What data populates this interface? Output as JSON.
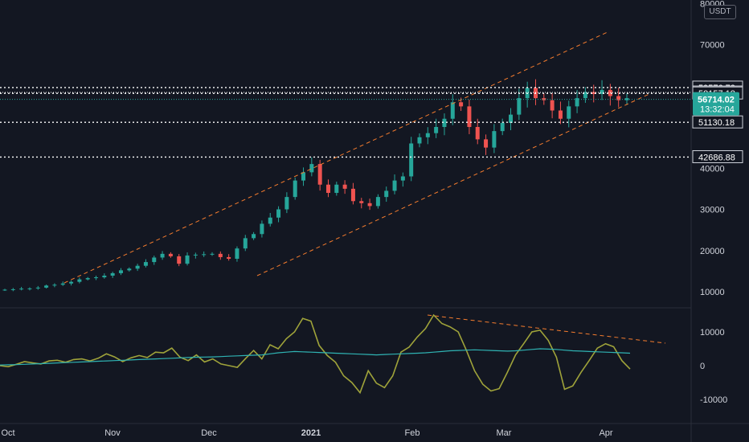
{
  "chart_data": [
    {
      "type": "candlestick",
      "currency": "USDT",
      "x_labels": [
        "Oct",
        "Nov",
        "Dec",
        "2021",
        "Feb",
        "Mar",
        "Apr"
      ],
      "y_ticks": [
        "80000",
        "70000",
        "40000",
        "30000",
        "20000",
        "10000"
      ],
      "ylim": [
        6000,
        80000
      ],
      "price_lines": [
        {
          "label": "59576.72",
          "value": 59576.72
        },
        {
          "label": "58385.81",
          "value": 58385.81
        },
        {
          "label": "58157.18",
          "value": 58157.18
        },
        {
          "label": "51130.18",
          "value": 51130.18
        },
        {
          "label": "42686.88",
          "value": 42686.88
        }
      ],
      "current_price": {
        "label": "56714.02",
        "countdown": "13:32:04",
        "value": 56714.02
      },
      "close_series": [
        10500,
        10600,
        10750,
        10800,
        11000,
        11500,
        11700,
        12000,
        12400,
        13000,
        13300,
        13500,
        13900,
        14500,
        15200,
        15600,
        16300,
        17200,
        18300,
        19200,
        18600,
        16800,
        18800,
        19000,
        19100,
        19200,
        18400,
        18000,
        20500,
        23000,
        24000,
        26500,
        28000,
        30000,
        33000,
        37000,
        39000,
        41000,
        36000,
        34000,
        36000,
        35000,
        32000,
        31500,
        30800,
        33000,
        34500,
        37000,
        38000,
        46000,
        47500,
        48500,
        50000,
        52000,
        56000,
        55000,
        50000,
        47000,
        45000,
        49000,
        51000,
        53000,
        57000,
        59500,
        57000,
        56500,
        54000,
        52000,
        55000,
        57000,
        58500,
        58000,
        59000,
        57500,
        56500,
        57000
      ]
    },
    {
      "type": "line",
      "yticks": [
        "10000",
        "0",
        "-10000"
      ],
      "ylim": [
        -15000,
        17000
      ],
      "series": [
        {
          "color": "#9fa33a",
          "values": [
            0,
            -300,
            400,
            1200,
            800,
            500,
            1400,
            1600,
            1000,
            1800,
            2000,
            1400,
            2200,
            3500,
            2600,
            1200,
            2300,
            3000,
            2400,
            4000,
            3800,
            5200,
            2500,
            1500,
            3200,
            1100,
            2000,
            500,
            0,
            -500,
            2100,
            4500,
            2000,
            6200,
            5000,
            8000,
            10000,
            14000,
            13200,
            6000,
            3000,
            1000,
            -3000,
            -5000,
            -8000,
            -1500,
            -5200,
            -6500,
            -3000,
            4000,
            5500,
            8500,
            11000,
            15000,
            12500,
            11500,
            10000,
            4500,
            -1500,
            -5500,
            -7500,
            -6800,
            -2000,
            3200,
            6500,
            10000,
            10500,
            7500,
            2500,
            -7000,
            -6000,
            -2000,
            1500,
            5200,
            6500,
            5600,
            1500,
            -1000
          ]
        },
        {
          "color": "#2fb3b3",
          "values": [
            200,
            250,
            300,
            400,
            500,
            600,
            700,
            800,
            900,
            1000,
            1100,
            1200,
            1300,
            1400,
            1500,
            1600,
            1700,
            1800,
            1900,
            2000,
            2100,
            2200,
            2300,
            2400,
            2500,
            2550,
            2600,
            2700,
            2800,
            2900,
            3000,
            3100,
            3200,
            3500,
            3800,
            4000,
            4200,
            4100,
            4000,
            3900,
            3800,
            3700,
            3600,
            3500,
            3400,
            3300,
            3200,
            3300,
            3400,
            3500,
            3600,
            3700,
            3800,
            4000,
            4200,
            4400,
            4500,
            4600,
            4700,
            4600,
            4500,
            4400,
            4300,
            4400,
            4600,
            4800,
            5000,
            4900,
            4800,
            4600,
            4400,
            4300,
            4200,
            4100,
            4000,
            3900,
            3800,
            3700
          ]
        }
      ]
    }
  ]
}
